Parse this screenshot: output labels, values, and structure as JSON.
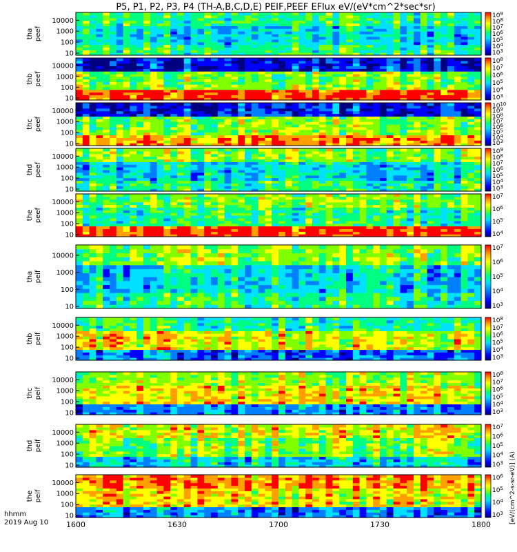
{
  "chart_data": {
    "type": "heatmap",
    "title": "P5, P1, P2, P3, P4 (TH-A,B,C,D,E) PEIF,PEEF EFlux eV/(eV*cm^2*sec*sr)",
    "x_ticks": [
      "1600",
      "1630",
      "1700",
      "1730",
      "1800"
    ],
    "x_label_line1": "hhmm",
    "x_label_line2": "2019 Aug 10",
    "y_ticks": [
      "10",
      "100",
      "1000",
      "10000"
    ],
    "colorbar_label": "[eV/(cm^2-s-sr-eV)] (A)",
    "colors": {
      "rainbow": [
        "#000080",
        "#0000ff",
        "#0080ff",
        "#00e0ff",
        "#00ff80",
        "#80ff00",
        "#ffff00",
        "#ffa000",
        "#ff0000"
      ]
    },
    "panels": [
      {
        "probe": "tha",
        "species": "peef",
        "cb_ticks": [
          "10^3",
          "10^4",
          "10^5",
          "10^6",
          "10^7",
          "10^8",
          "10^9"
        ]
      },
      {
        "probe": "thb",
        "species": "peef",
        "cb_ticks": [
          "10^3",
          "10^4",
          "10^5",
          "10^6",
          "10^7",
          "10^8"
        ]
      },
      {
        "probe": "thc",
        "species": "peef",
        "cb_ticks": [
          "10^3",
          "10^4",
          "10^5",
          "10^6",
          "10^7",
          "10^8",
          "10^9",
          "10^10"
        ]
      },
      {
        "probe": "thd",
        "species": "peef",
        "cb_ticks": [
          "10^3",
          "10^4",
          "10^5",
          "10^6",
          "10^7",
          "10^8",
          "10^9"
        ]
      },
      {
        "probe": "the",
        "species": "peef",
        "cb_ticks": [
          "10^4",
          "10^5",
          "10^6",
          "10^7"
        ]
      },
      {
        "probe": "tha",
        "species": "peif",
        "cb_ticks": [
          "10^3",
          "10^4",
          "10^5",
          "10^6",
          "10^7"
        ]
      },
      {
        "probe": "thb",
        "species": "peif",
        "cb_ticks": [
          "10^3",
          "10^4",
          "10^5",
          "10^6",
          "10^7",
          "10^8"
        ]
      },
      {
        "probe": "thc",
        "species": "peif",
        "cb_ticks": [
          "10^3",
          "10^4",
          "10^5",
          "10^6",
          "10^7",
          "10^8"
        ]
      },
      {
        "probe": "thd",
        "species": "peif",
        "cb_ticks": [
          "10^3",
          "10^4",
          "10^5",
          "10^6",
          "10^7"
        ]
      },
      {
        "probe": "the",
        "species": "peif",
        "cb_ticks": [
          "10^3",
          "10^4",
          "10^5",
          "10^6"
        ]
      }
    ]
  }
}
